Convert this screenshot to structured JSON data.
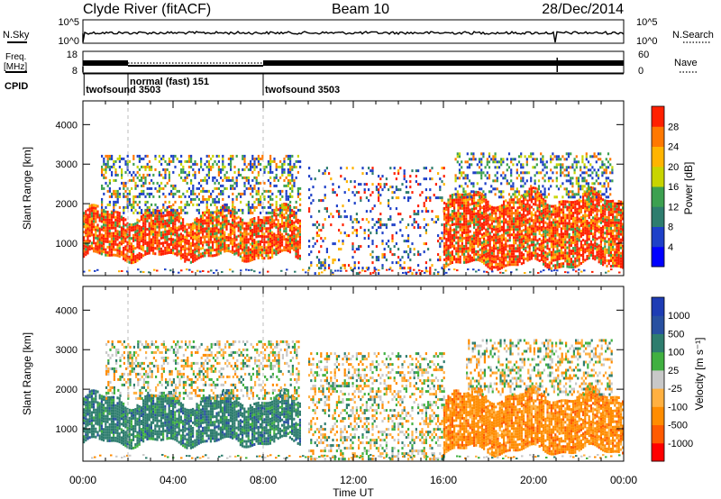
{
  "header": {
    "station": "Clyde River (fitACF)",
    "beam": "Beam 10",
    "date": "28/Dec/2014"
  },
  "sky_panel": {
    "left_label": "N.Sky",
    "left_ticks": [
      "10^5",
      "10^0"
    ],
    "right_ticks": [
      "10^5",
      "10^0"
    ],
    "right_label": "N.Search",
    "right_legend_style": "dotted"
  },
  "freq_panel": {
    "left_label_top": "Freq.",
    "left_label_unit": "[MHz]",
    "left_ticks": [
      "18",
      "8"
    ],
    "right_ticks": [
      "60",
      "0"
    ],
    "right_label": "Nave",
    "right_legend_style": "dotted"
  },
  "cpid": {
    "label": "CPID",
    "segments": [
      {
        "start_hour": 0.05,
        "label": "twofsound 3503"
      },
      {
        "start_hour": 2.0,
        "label": "normal (fast) 151"
      },
      {
        "start_hour": 8.0,
        "label": "twofsound 3503"
      }
    ]
  },
  "colors": {
    "power": [
      "#0000ff",
      "#1e40c8",
      "#2e7d6e",
      "#3ca050",
      "#c8d400",
      "#ffb400",
      "#ff7800",
      "#ff2000"
    ],
    "velocity": [
      "#ff0000",
      "#ff5a00",
      "#ff8c00",
      "#ffb040",
      "#c8c8c8",
      "#40b040",
      "#2e7d6e",
      "#2850a0",
      "#1e3cb4"
    ]
  },
  "chart_data": [
    {
      "type": "heatmap",
      "quantity": "Power",
      "ylabel": "Slant Range [km]",
      "yticks": [
        1000,
        2000,
        3000,
        4000
      ],
      "ylim": [
        180,
        4600
      ],
      "xlim_hours": [
        0,
        24
      ],
      "xticks": [
        "00:00",
        "04:00",
        "08:00",
        "12:00",
        "16:00",
        "20:00",
        "00:00"
      ],
      "colorbar": {
        "label": "Power [dB]",
        "ticks": [
          "4",
          "8",
          "12",
          "16",
          "20",
          "24",
          "28"
        ],
        "range": [
          0,
          32
        ]
      },
      "echo_regions": [
        {
          "t_start": 0.0,
          "t_end": 9.6,
          "range_low_km": 700,
          "range_high_km": 1800,
          "level": "high"
        },
        {
          "t_start": 0.8,
          "t_end": 9.6,
          "range_low_km": 1800,
          "range_high_km": 3300,
          "level": "low"
        },
        {
          "t_start": 10.0,
          "t_end": 16.0,
          "range_low_km": 200,
          "range_high_km": 3000,
          "level": "sparse"
        },
        {
          "t_start": 16.0,
          "t_end": 24.0,
          "range_low_km": 500,
          "range_high_km": 2200,
          "level": "high"
        },
        {
          "t_start": 16.5,
          "t_end": 23.5,
          "range_low_km": 2200,
          "range_high_km": 3300,
          "level": "low"
        }
      ]
    },
    {
      "type": "heatmap",
      "quantity": "Velocity",
      "ylabel": "Slant Range [km]",
      "yticks": [
        1000,
        2000,
        3000,
        4000
      ],
      "ylim": [
        180,
        4600
      ],
      "xlim_hours": [
        0,
        24
      ],
      "xticks": [
        "00:00",
        "04:00",
        "08:00",
        "12:00",
        "16:00",
        "20:00",
        "00:00"
      ],
      "xlabel": "Time UT",
      "colorbar": {
        "label": "Velocity [m s⁻¹]",
        "ticks": [
          "1000",
          "500",
          "100",
          "25",
          "-25",
          "-100",
          "-500",
          "-1000"
        ],
        "range": [
          -1200,
          1200
        ]
      },
      "echo_regions": [
        {
          "t_start": 0.0,
          "t_end": 9.6,
          "range_low_km": 700,
          "range_high_km": 1800,
          "level": "positive"
        },
        {
          "t_start": 1.0,
          "t_end": 9.6,
          "range_low_km": 1800,
          "range_high_km": 3300,
          "level": "mixed"
        },
        {
          "t_start": 10.0,
          "t_end": 16.0,
          "range_low_km": 200,
          "range_high_km": 3000,
          "level": "mixed"
        },
        {
          "t_start": 16.0,
          "t_end": 24.0,
          "range_low_km": 500,
          "range_high_km": 1900,
          "level": "negative"
        },
        {
          "t_start": 17.0,
          "t_end": 23.5,
          "range_low_km": 1900,
          "range_high_km": 3300,
          "level": "mixed"
        }
      ]
    }
  ]
}
